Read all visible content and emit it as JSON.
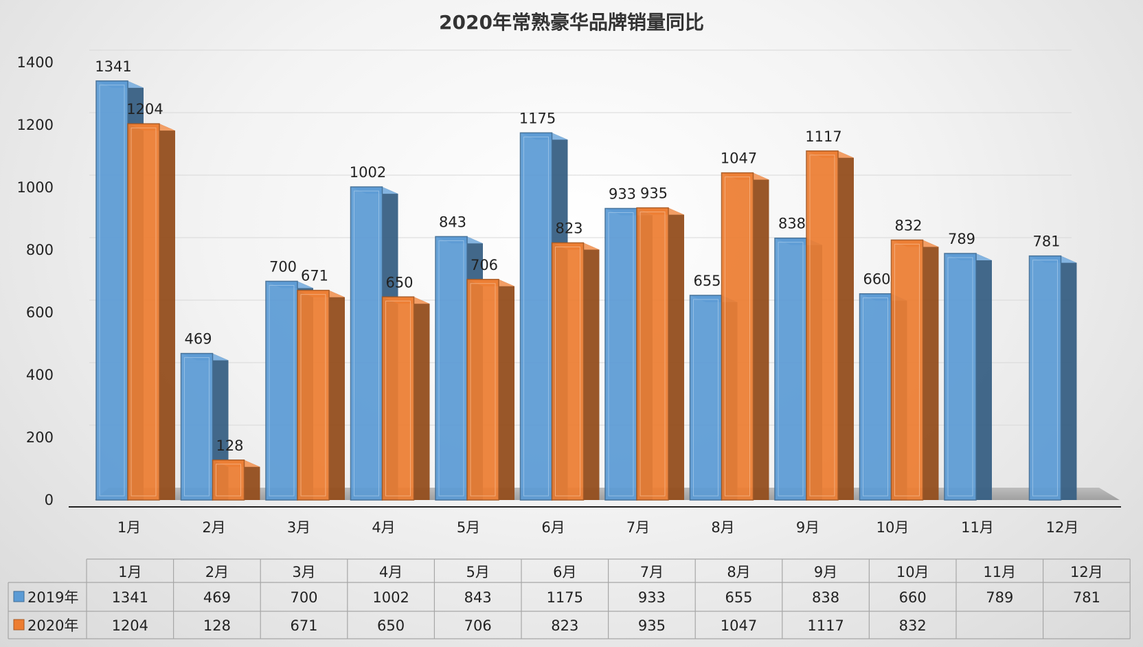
{
  "chart_data": {
    "type": "bar",
    "title": "2020年常熟豪华品牌销量同比",
    "xlabel": "",
    "ylabel": "",
    "ylim": [
      0,
      1400
    ],
    "yticks": [
      0,
      200,
      400,
      600,
      800,
      1000,
      1200,
      1400
    ],
    "grid": true,
    "categories": [
      "1月",
      "2月",
      "3月",
      "4月",
      "5月",
      "6月",
      "7月",
      "8月",
      "9月",
      "10月",
      "11月",
      "12月"
    ],
    "series": [
      {
        "name": "2019年",
        "color": "#5b9bd5",
        "values": [
          1341,
          469,
          700,
          1002,
          843,
          1175,
          933,
          655,
          838,
          660,
          789,
          781
        ]
      },
      {
        "name": "2020年",
        "color": "#ed7d31",
        "values": [
          1204,
          128,
          671,
          650,
          706,
          823,
          935,
          1047,
          1117,
          832,
          null,
          null
        ]
      }
    ],
    "legend": "data-table-below"
  }
}
